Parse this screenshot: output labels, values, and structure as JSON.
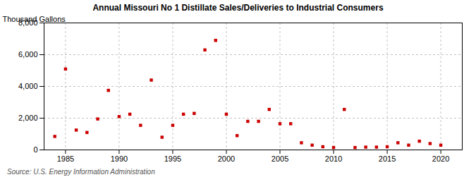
{
  "chart_data": {
    "type": "scatter",
    "title": "Annual Missouri No 1 Distillate Sales/Deliveries to Industrial Consumers",
    "ylabel": "Thousand Gallons",
    "source": "Source: U.S. Energy Information Administration",
    "x": [
      1984,
      1985,
      1986,
      1987,
      1988,
      1989,
      1990,
      1991,
      1992,
      1993,
      1994,
      1995,
      1996,
      1997,
      1998,
      1999,
      2000,
      2001,
      2002,
      2003,
      2004,
      2005,
      2006,
      2007,
      2008,
      2009,
      2010,
      2011,
      2012,
      2013,
      2014,
      2015,
      2016,
      2017,
      2018,
      2019,
      2020
    ],
    "values": [
      850,
      5100,
      1250,
      1100,
      1950,
      3750,
      2100,
      2250,
      1550,
      4400,
      800,
      1550,
      2250,
      2300,
      6300,
      6900,
      2250,
      900,
      1800,
      1800,
      2550,
      1650,
      1650,
      450,
      300,
      200,
      150,
      2550,
      150,
      175,
      175,
      200,
      450,
      300,
      550,
      400,
      300
    ],
    "color": "#cc0000",
    "marker": "square",
    "xlim": [
      1983,
      2022
    ],
    "xticks": [
      1985,
      1990,
      1995,
      2000,
      2005,
      2010,
      2015,
      2020
    ],
    "ylim": [
      0,
      8000
    ],
    "yticks": [
      0,
      {
        "value": 2000,
        "label": "2,000"
      },
      {
        "value": 4000,
        "label": "4,000"
      },
      {
        "value": 6000,
        "label": "6,000"
      },
      {
        "value": 8000,
        "label": "8,000"
      }
    ],
    "grid": true
  }
}
